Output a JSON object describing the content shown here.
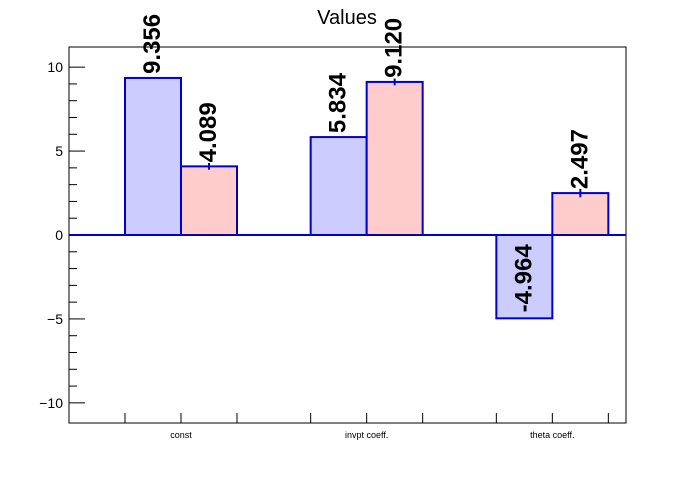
{
  "chart_data": {
    "type": "bar",
    "title": "Values",
    "xlabel": "",
    "ylabel": "",
    "categories": [
      "const",
      "invpt coeff.",
      "theta coeff."
    ],
    "ylim": [
      -11.2,
      11.2
    ],
    "yticks": [
      -10,
      -5,
      0,
      5,
      10
    ],
    "ytick_labels": [
      "−10",
      "−5",
      "0",
      "5",
      "10"
    ],
    "grid": false,
    "series": [
      {
        "values": [
          9.356,
          5.834,
          -4.964
        ],
        "labels": [
          "9.356",
          "5.834",
          "-4.964"
        ],
        "errors": [
          0,
          0,
          0
        ],
        "fill": "#ccccff",
        "stroke": "#0000cc"
      },
      {
        "values": [
          4.089,
          9.12,
          2.497
        ],
        "labels": [
          "4.089",
          "9.120",
          "2.497"
        ],
        "errors": [
          0.2,
          0.2,
          0.25
        ],
        "fill": "#ffcccc",
        "stroke": "#0000cc"
      }
    ]
  }
}
